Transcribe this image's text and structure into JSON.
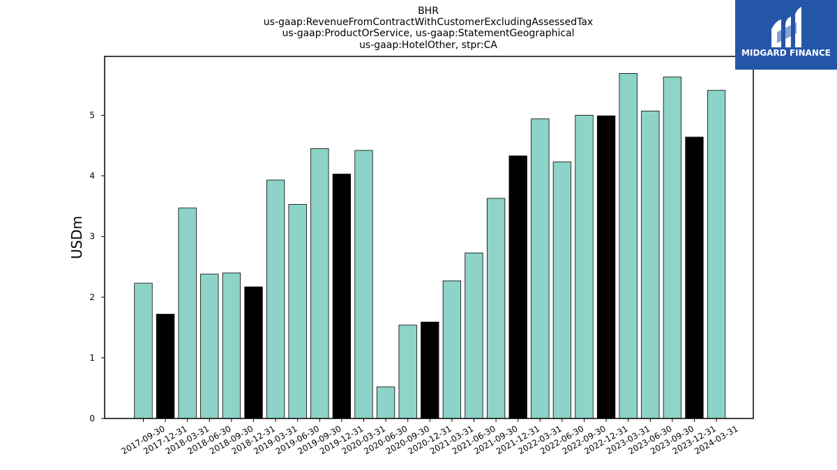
{
  "logo": {
    "text": "MIDGARD FINANCE",
    "background": "#2456a8",
    "foreground": "#ffffff"
  },
  "chart_data": {
    "type": "bar",
    "title_lines": [
      "BHR",
      "us-gaap:RevenueFromContractWithCustomerExcludingAssessedTax",
      "us-gaap:ProductOrService, us-gaap:StatementGeographical",
      "us-gaap:HotelOther, stpr:CA"
    ],
    "xlabel": "",
    "ylabel": "USDm",
    "ylim": [
      0,
      5.97
    ],
    "yticks": [
      0,
      1,
      2,
      3,
      4,
      5
    ],
    "grid": false,
    "legend": "none",
    "colors": {
      "quarter": "#8dd3c7",
      "year_end": "#000000",
      "edge": "#000000"
    },
    "categories": [
      "2017-09-30",
      "2017-12-31",
      "2018-03-31",
      "2018-06-30",
      "2018-09-30",
      "2018-12-31",
      "2019-03-31",
      "2019-06-30",
      "2019-09-30",
      "2019-12-31",
      "2020-03-31",
      "2020-06-30",
      "2020-09-30",
      "2020-12-31",
      "2021-03-31",
      "2021-06-30",
      "2021-09-30",
      "2021-12-31",
      "2022-03-31",
      "2022-06-30",
      "2022-09-30",
      "2022-12-31",
      "2023-03-31",
      "2023-06-30",
      "2023-09-30",
      "2023-12-31",
      "2024-03-31"
    ],
    "values": [
      2.23,
      1.72,
      3.47,
      2.38,
      2.4,
      2.17,
      3.93,
      3.53,
      4.45,
      4.03,
      4.42,
      0.52,
      1.54,
      1.59,
      2.27,
      2.73,
      3.63,
      4.33,
      4.94,
      4.23,
      5.0,
      4.99,
      5.69,
      5.07,
      5.63,
      4.64,
      5.41
    ],
    "year_end": [
      false,
      true,
      false,
      false,
      false,
      true,
      false,
      false,
      false,
      true,
      false,
      false,
      false,
      true,
      false,
      false,
      false,
      true,
      false,
      false,
      false,
      true,
      false,
      false,
      false,
      true,
      false
    ]
  }
}
